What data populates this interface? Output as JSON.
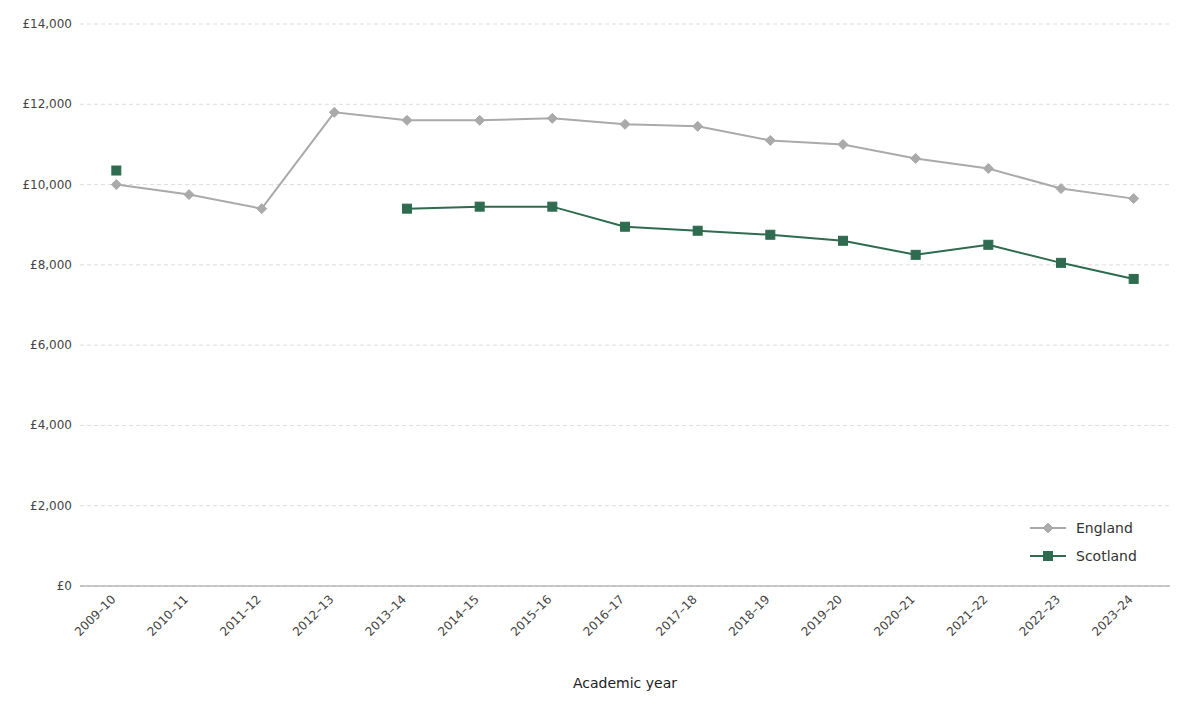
{
  "chart_data": {
    "type": "line",
    "x_label": "Academic year",
    "categories": [
      "2009–10",
      "2010–11",
      "2011–12",
      "2012–13",
      "2013–14",
      "2014–15",
      "2015–16",
      "2016–17",
      "2017–18",
      "2018–19",
      "2019–20",
      "2020–21",
      "2021–22",
      "2022–23",
      "2023–24"
    ],
    "series": [
      {
        "name": "England",
        "color": "#aaaaaa",
        "marker": "diamond",
        "values": [
          10000,
          9750,
          9400,
          11800,
          11600,
          11600,
          11650,
          11500,
          11450,
          11100,
          11000,
          10650,
          10400,
          9900,
          9650
        ]
      },
      {
        "name": "Scotland",
        "color": "#2e6b4f",
        "marker": "square",
        "values": [
          10350,
          null,
          null,
          null,
          9400,
          9450,
          9450,
          8950,
          8850,
          8750,
          8600,
          8250,
          8500,
          8050,
          7650
        ]
      }
    ],
    "ylim": [
      0,
      14000
    ],
    "yticks": [
      {
        "value": 0,
        "label": "£0"
      },
      {
        "value": 2000,
        "label": "£2,000"
      },
      {
        "value": 4000,
        "label": "£4,000"
      },
      {
        "value": 6000,
        "label": "£6,000"
      },
      {
        "value": 8000,
        "label": "£8,000"
      },
      {
        "value": 10000,
        "label": "£10,000"
      },
      {
        "value": 12000,
        "label": "£12,000"
      },
      {
        "value": 14000,
        "label": "£14,000"
      }
    ],
    "grid": true,
    "legend": "lower right"
  }
}
